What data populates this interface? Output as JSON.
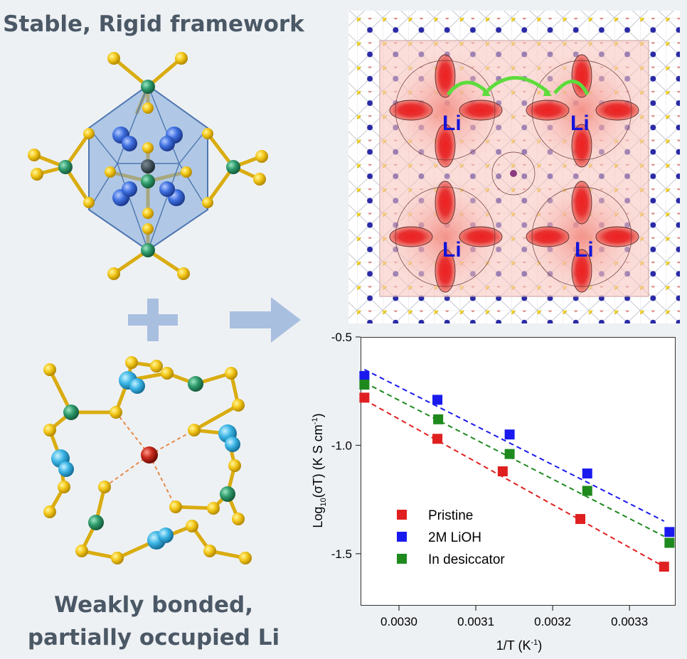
{
  "left_panel": {
    "top_title": "Stable, Rigid framework",
    "bottom_title_line1": "Weakly bonded,",
    "bottom_title_line2": "partially occupied Li",
    "plus_symbol": "+",
    "arrow_icon": "right-arrow-icon"
  },
  "map_panel": {
    "li_labels": [
      "Li",
      "Li",
      "Li",
      "Li"
    ]
  },
  "colors": {
    "title": "#4b5866",
    "pristine": "#e02020",
    "lioh": "#1a1aee",
    "desiccator": "#1e8a1e",
    "accent_arrow": "#a9bfe0",
    "hop_arrow": "#5ddc3c"
  },
  "chart_data": {
    "type": "scatter",
    "title": "",
    "xlabel": "1/T (K-1)",
    "ylabel": "Log10(σT) (K S cm-1)",
    "xlim": [
      0.00295,
      0.00336
    ],
    "ylim": [
      -1.74,
      -0.5
    ],
    "xticks": [
      "0.0030",
      "0.0031",
      "0.0032",
      "0.0033"
    ],
    "xtick_values": [
      0.003,
      0.0031,
      0.0032,
      0.0033
    ],
    "yticks": [
      "-0.5",
      "-1.0",
      "-1.5"
    ],
    "ytick_values": [
      -0.5,
      -1.0,
      -1.5
    ],
    "series": [
      {
        "name": "Pristine",
        "color": "#e02020",
        "x": [
          0.002955,
          0.00305,
          0.003135,
          0.003236,
          0.003345
        ],
        "y": [
          -0.78,
          -0.97,
          -1.12,
          -1.34,
          -1.56
        ],
        "fit": [
          [
            0.002955,
            -0.79
          ],
          [
            0.003345,
            -1.56
          ]
        ]
      },
      {
        "name": "2M LiOH",
        "color": "#1a1aee",
        "x": [
          0.002955,
          0.00305,
          0.003144,
          0.003245,
          0.003352
        ],
        "y": [
          -0.68,
          -0.79,
          -0.95,
          -1.13,
          -1.4
        ],
        "fit": [
          [
            0.002955,
            -0.65
          ],
          [
            0.003345,
            -1.35
          ]
        ]
      },
      {
        "name": "In desiccator",
        "color": "#1e8a1e",
        "x": [
          0.002955,
          0.003051,
          0.003144,
          0.003245,
          0.003352
        ],
        "y": [
          -0.72,
          -0.88,
          -1.04,
          -1.21,
          -1.45
        ],
        "fit": [
          [
            0.002955,
            -0.71
          ],
          [
            0.003345,
            -1.42
          ]
        ]
      }
    ],
    "legend": [
      "Pristine",
      "2M LiOH",
      "In desiccator"
    ],
    "legend_position": "bottom-left"
  }
}
